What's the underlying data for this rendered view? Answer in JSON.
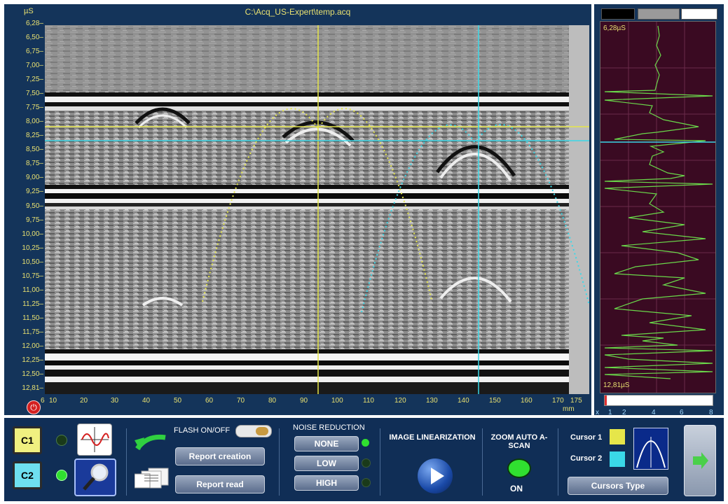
{
  "scan": {
    "title": "C:\\Acq_US-Expert\\temp.acq",
    "y_unit": "µS",
    "y_ticks": [
      "6,28",
      "6,50",
      "6,75",
      "7,00",
      "7,25",
      "7,50",
      "7,75",
      "8,00",
      "8,25",
      "8,50",
      "8,75",
      "9,00",
      "9,25",
      "9,50",
      "9,75",
      "10,00",
      "10,25",
      "10,50",
      "10,75",
      "11,00",
      "11,25",
      "11,50",
      "11,75",
      "12,00",
      "12,25",
      "12,50",
      "12,81"
    ],
    "x_ticks": [
      "6",
      "10",
      "20",
      "30",
      "40",
      "50",
      "60",
      "70",
      "80",
      "90",
      "100",
      "110",
      "120",
      "130",
      "140",
      "150",
      "160",
      "170",
      "175"
    ],
    "x_unit": "mm",
    "cursor1_color": "#e6e64a",
    "cursor2_color": "#3ad8e8"
  },
  "ascan": {
    "swatches": [
      "#000000",
      "#9a9a9a",
      "#ffffff"
    ],
    "top_label": "6,28µS",
    "bottom_label": "12,81µS",
    "x_prefix": "x",
    "x_ticks": [
      "1",
      "2",
      "4",
      "6",
      "8"
    ],
    "trace_color": "#6ad84a"
  },
  "toolbar": {
    "c1_label": "C1",
    "c2_label": "C2",
    "flash_label": "FLASH ON/OFF",
    "report_creation": "Report creation",
    "report_read": "Report read",
    "noise_title": "NOISE REDUCTION",
    "noise_none": "NONE",
    "noise_low": "LOW",
    "noise_high": "HIGH",
    "linearization_title": "IMAGE LINEARIZATION",
    "zoom_title": "ZOOM AUTO A-SCAN",
    "zoom_state": "ON",
    "cursor1_label": "Cursor 1",
    "cursor2_label": "Cursor 2",
    "cursors_type": "Cursors Type",
    "colors": {
      "c1_fill": "#f0f080",
      "c2_fill": "#6ee0f0",
      "led_on": "#30e030",
      "led_off": "#1a3a1a"
    }
  }
}
